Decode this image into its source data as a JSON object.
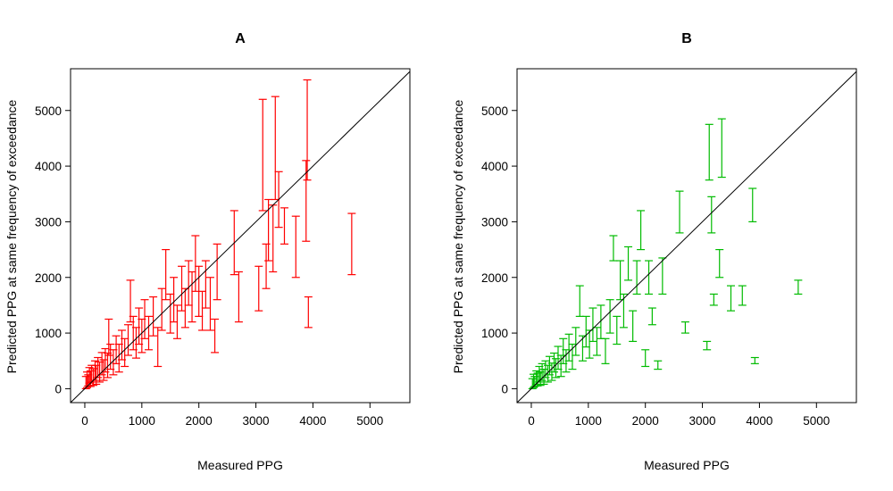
{
  "figure": {
    "background": "#ffffff"
  },
  "chart_data": [
    {
      "type": "errorbar",
      "panel": "A",
      "title": "A",
      "xlabel": "Measured PPG",
      "ylabel": "Predicted PPG at same frequency of exceedance",
      "xlim": [
        -250,
        5700
      ],
      "ylim": [
        -250,
        5750
      ],
      "xticks": [
        0,
        1000,
        2000,
        3000,
        4000,
        5000
      ],
      "yticks": [
        0,
        1000,
        2000,
        3000,
        4000,
        5000
      ],
      "reference_line": "1:1",
      "color": "#ff0000",
      "bars": [
        {
          "x": 20,
          "lo": 0,
          "hi": 220
        },
        {
          "x": 40,
          "lo": 20,
          "hi": 300
        },
        {
          "x": 60,
          "lo": 50,
          "hi": 250
        },
        {
          "x": 80,
          "lo": 100,
          "hi": 380
        },
        {
          "x": 100,
          "lo": 40,
          "hi": 320
        },
        {
          "x": 120,
          "lo": 120,
          "hi": 420
        },
        {
          "x": 150,
          "lo": 60,
          "hi": 360
        },
        {
          "x": 180,
          "lo": 150,
          "hi": 500
        },
        {
          "x": 200,
          "lo": 80,
          "hi": 420
        },
        {
          "x": 230,
          "lo": 200,
          "hi": 560
        },
        {
          "x": 260,
          "lo": 120,
          "hi": 480
        },
        {
          "x": 300,
          "lo": 250,
          "hi": 650
        },
        {
          "x": 330,
          "lo": 150,
          "hi": 520
        },
        {
          "x": 360,
          "lo": 300,
          "hi": 720
        },
        {
          "x": 400,
          "lo": 200,
          "hi": 640
        },
        {
          "x": 420,
          "lo": 600,
          "hi": 1250
        },
        {
          "x": 450,
          "lo": 350,
          "hi": 800
        },
        {
          "x": 500,
          "lo": 250,
          "hi": 700
        },
        {
          "x": 550,
          "lo": 450,
          "hi": 950
        },
        {
          "x": 600,
          "lo": 300,
          "hi": 800
        },
        {
          "x": 650,
          "lo": 520,
          "hi": 1050
        },
        {
          "x": 700,
          "lo": 400,
          "hi": 900
        },
        {
          "x": 760,
          "lo": 600,
          "hi": 1150
        },
        {
          "x": 800,
          "lo": 1200,
          "hi": 1950
        },
        {
          "x": 850,
          "lo": 700,
          "hi": 1300
        },
        {
          "x": 900,
          "lo": 550,
          "hi": 1100
        },
        {
          "x": 950,
          "lo": 800,
          "hi": 1450
        },
        {
          "x": 1000,
          "lo": 650,
          "hi": 1250
        },
        {
          "x": 1050,
          "lo": 900,
          "hi": 1600
        },
        {
          "x": 1120,
          "lo": 700,
          "hi": 1300
        },
        {
          "x": 1200,
          "lo": 950,
          "hi": 1650
        },
        {
          "x": 1280,
          "lo": 400,
          "hi": 1100
        },
        {
          "x": 1350,
          "lo": 1050,
          "hi": 1800
        },
        {
          "x": 1420,
          "lo": 1600,
          "hi": 2500
        },
        {
          "x": 1500,
          "lo": 1000,
          "hi": 1700
        },
        {
          "x": 1560,
          "lo": 1200,
          "hi": 2000
        },
        {
          "x": 1620,
          "lo": 900,
          "hi": 1500
        },
        {
          "x": 1700,
          "lo": 1400,
          "hi": 2200
        },
        {
          "x": 1760,
          "lo": 1100,
          "hi": 1800
        },
        {
          "x": 1820,
          "lo": 1500,
          "hi": 2300
        },
        {
          "x": 1880,
          "lo": 1200,
          "hi": 2100
        },
        {
          "x": 1940,
          "lo": 1750,
          "hi": 2750
        },
        {
          "x": 2000,
          "lo": 1300,
          "hi": 2200
        },
        {
          "x": 2060,
          "lo": 1050,
          "hi": 1750
        },
        {
          "x": 2120,
          "lo": 1450,
          "hi": 2300
        },
        {
          "x": 2200,
          "lo": 1050,
          "hi": 2000
        },
        {
          "x": 2280,
          "lo": 650,
          "hi": 1250
        },
        {
          "x": 2320,
          "lo": 1600,
          "hi": 2600
        },
        {
          "x": 2620,
          "lo": 2050,
          "hi": 3200
        },
        {
          "x": 2700,
          "lo": 1200,
          "hi": 2100
        },
        {
          "x": 3050,
          "lo": 1400,
          "hi": 2200
        },
        {
          "x": 3120,
          "lo": 3200,
          "hi": 5200
        },
        {
          "x": 3180,
          "lo": 1800,
          "hi": 2600
        },
        {
          "x": 3220,
          "lo": 2300,
          "hi": 3400
        },
        {
          "x": 3300,
          "lo": 2100,
          "hi": 3300
        },
        {
          "x": 3340,
          "lo": 3400,
          "hi": 5250
        },
        {
          "x": 3400,
          "lo": 2900,
          "hi": 3900
        },
        {
          "x": 3500,
          "lo": 2600,
          "hi": 3250
        },
        {
          "x": 3700,
          "lo": 2000,
          "hi": 3100
        },
        {
          "x": 3880,
          "lo": 2650,
          "hi": 4100
        },
        {
          "x": 3900,
          "lo": 3750,
          "hi": 5550
        },
        {
          "x": 3920,
          "lo": 1100,
          "hi": 1650
        },
        {
          "x": 4680,
          "lo": 2050,
          "hi": 3150
        }
      ]
    },
    {
      "type": "errorbar",
      "panel": "B",
      "title": "B",
      "xlabel": "Measured PPG",
      "ylabel": "Predicted PPG at same frequency of exceedance",
      "xlim": [
        -250,
        5700
      ],
      "ylim": [
        -250,
        5750
      ],
      "xticks": [
        0,
        1000,
        2000,
        3000,
        4000,
        5000
      ],
      "yticks": [
        0,
        1000,
        2000,
        3000,
        4000,
        5000
      ],
      "reference_line": "1:1",
      "color": "#00bb00",
      "bars": [
        {
          "x": 20,
          "lo": 0,
          "hi": 180
        },
        {
          "x": 40,
          "lo": 20,
          "hi": 260
        },
        {
          "x": 60,
          "lo": 40,
          "hi": 220
        },
        {
          "x": 90,
          "lo": 80,
          "hi": 320
        },
        {
          "x": 110,
          "lo": 50,
          "hi": 280
        },
        {
          "x": 140,
          "lo": 120,
          "hi": 400
        },
        {
          "x": 160,
          "lo": 60,
          "hi": 300
        },
        {
          "x": 190,
          "lo": 150,
          "hi": 450
        },
        {
          "x": 220,
          "lo": 80,
          "hi": 350
        },
        {
          "x": 250,
          "lo": 200,
          "hi": 500
        },
        {
          "x": 290,
          "lo": 120,
          "hi": 420
        },
        {
          "x": 320,
          "lo": 250,
          "hi": 580
        },
        {
          "x": 360,
          "lo": 150,
          "hi": 460
        },
        {
          "x": 400,
          "lo": 300,
          "hi": 640
        },
        {
          "x": 430,
          "lo": 200,
          "hi": 540
        },
        {
          "x": 470,
          "lo": 350,
          "hi": 760
        },
        {
          "x": 520,
          "lo": 220,
          "hi": 600
        },
        {
          "x": 560,
          "lo": 450,
          "hi": 900
        },
        {
          "x": 610,
          "lo": 300,
          "hi": 700
        },
        {
          "x": 660,
          "lo": 500,
          "hi": 980
        },
        {
          "x": 720,
          "lo": 350,
          "hi": 800
        },
        {
          "x": 780,
          "lo": 600,
          "hi": 1100
        },
        {
          "x": 850,
          "lo": 1300,
          "hi": 1850
        },
        {
          "x": 900,
          "lo": 500,
          "hi": 950
        },
        {
          "x": 960,
          "lo": 750,
          "hi": 1300
        },
        {
          "x": 1020,
          "lo": 550,
          "hi": 1050
        },
        {
          "x": 1080,
          "lo": 850,
          "hi": 1450
        },
        {
          "x": 1150,
          "lo": 600,
          "hi": 1100
        },
        {
          "x": 1220,
          "lo": 900,
          "hi": 1500
        },
        {
          "x": 1300,
          "lo": 450,
          "hi": 900
        },
        {
          "x": 1380,
          "lo": 1000,
          "hi": 1600
        },
        {
          "x": 1440,
          "lo": 2300,
          "hi": 2750
        },
        {
          "x": 1500,
          "lo": 800,
          "hi": 1300
        },
        {
          "x": 1560,
          "lo": 1600,
          "hi": 2300
        },
        {
          "x": 1620,
          "lo": 1100,
          "hi": 1700
        },
        {
          "x": 1700,
          "lo": 1950,
          "hi": 2550
        },
        {
          "x": 1780,
          "lo": 850,
          "hi": 1400
        },
        {
          "x": 1850,
          "lo": 1700,
          "hi": 2300
        },
        {
          "x": 1920,
          "lo": 2500,
          "hi": 3200
        },
        {
          "x": 2000,
          "lo": 400,
          "hi": 700
        },
        {
          "x": 2060,
          "lo": 1700,
          "hi": 2300
        },
        {
          "x": 2120,
          "lo": 1150,
          "hi": 1450
        },
        {
          "x": 2220,
          "lo": 350,
          "hi": 500
        },
        {
          "x": 2300,
          "lo": 1700,
          "hi": 2350
        },
        {
          "x": 2600,
          "lo": 2800,
          "hi": 3550
        },
        {
          "x": 2700,
          "lo": 1000,
          "hi": 1200
        },
        {
          "x": 3080,
          "lo": 700,
          "hi": 850
        },
        {
          "x": 3120,
          "lo": 3750,
          "hi": 4750
        },
        {
          "x": 3160,
          "lo": 2800,
          "hi": 3450
        },
        {
          "x": 3200,
          "lo": 1500,
          "hi": 1700
        },
        {
          "x": 3300,
          "lo": 2000,
          "hi": 2500
        },
        {
          "x": 3340,
          "lo": 3800,
          "hi": 4850
        },
        {
          "x": 3500,
          "lo": 1400,
          "hi": 1850
        },
        {
          "x": 3700,
          "lo": 1500,
          "hi": 1850
        },
        {
          "x": 3880,
          "lo": 3000,
          "hi": 3600
        },
        {
          "x": 3920,
          "lo": 450,
          "hi": 560
        },
        {
          "x": 4680,
          "lo": 1700,
          "hi": 1950
        }
      ]
    }
  ]
}
